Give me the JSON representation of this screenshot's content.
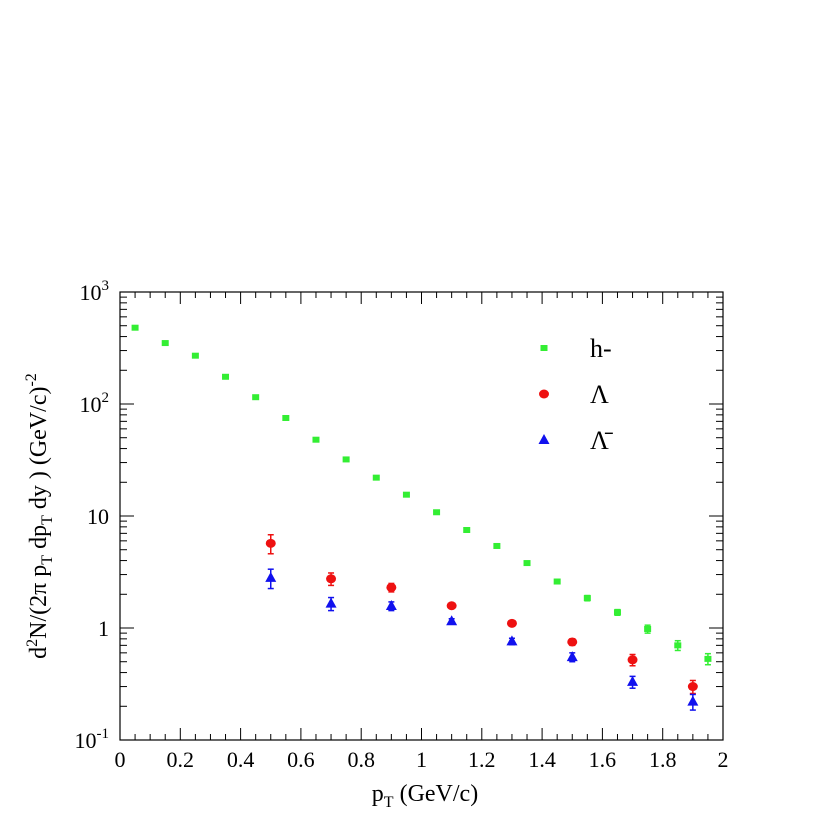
{
  "chart_data": {
    "type": "scatter",
    "xlabel": "p_T (GeV/c)",
    "ylabel": "d²N/(2π p_T dp_T dy ) (GeV/c)^-2",
    "x_range": [
      0,
      2
    ],
    "y_range": [
      0.1,
      1000
    ],
    "y_scale": "log",
    "x_ticks": [
      0,
      0.2,
      0.4,
      0.6,
      0.8,
      1,
      1.2,
      1.4,
      1.6,
      1.8,
      2
    ],
    "x_tick_labels": [
      "0",
      "0.2",
      "0.4",
      "0.6",
      "0.8",
      "1",
      "1.2",
      "1.4",
      "1.6",
      "1.8",
      "2"
    ],
    "y_ticks": [
      0.1,
      1,
      10,
      100,
      1000
    ],
    "y_tick_labels": [
      {
        "base": "10",
        "exp": "-1"
      },
      {
        "base": "1",
        "exp": ""
      },
      {
        "base": "10",
        "exp": ""
      },
      {
        "base": "10",
        "exp": "2"
      },
      {
        "base": "10",
        "exp": "3"
      }
    ],
    "grid": false,
    "legend_position": "top-right",
    "series": [
      {
        "name": "h-",
        "marker": "square",
        "color": "#33ee33",
        "x": [
          0.05,
          0.15,
          0.25,
          0.35,
          0.45,
          0.55,
          0.65,
          0.75,
          0.85,
          0.95,
          1.05,
          1.15,
          1.25,
          1.35,
          1.45,
          1.55,
          1.65,
          1.75,
          1.85,
          1.95
        ],
        "y": [
          480,
          350,
          270,
          175,
          115,
          75,
          48,
          32,
          22,
          15.5,
          10.8,
          7.5,
          5.4,
          3.8,
          2.6,
          1.85,
          1.38,
          0.98,
          0.7,
          0.53
        ],
        "err": [
          5,
          5,
          4,
          3,
          2,
          1.5,
          1,
          0.6,
          0.5,
          0.4,
          0.3,
          0.2,
          0.15,
          0.12,
          0.1,
          0.1,
          0.08,
          0.08,
          0.07,
          0.06
        ]
      },
      {
        "name": "Λ",
        "marker": "circle",
        "color": "#ee1111",
        "x": [
          0.5,
          0.7,
          0.9,
          1.1,
          1.3,
          1.5,
          1.7,
          1.9
        ],
        "y": [
          5.7,
          2.75,
          2.3,
          1.58,
          1.1,
          0.75,
          0.52,
          0.3
        ],
        "err": [
          1.1,
          0.35,
          0.2,
          0.08,
          0.06,
          0.05,
          0.06,
          0.04
        ]
      },
      {
        "name": "Λ̄",
        "marker": "triangle",
        "color": "#1111ee",
        "x": [
          0.5,
          0.7,
          0.9,
          1.1,
          1.3,
          1.5,
          1.7,
          1.9
        ],
        "y": [
          2.8,
          1.65,
          1.57,
          1.15,
          0.76,
          0.55,
          0.33,
          0.22
        ],
        "err": [
          0.55,
          0.22,
          0.14,
          0.06,
          0.05,
          0.05,
          0.04,
          0.035
        ]
      }
    ]
  }
}
